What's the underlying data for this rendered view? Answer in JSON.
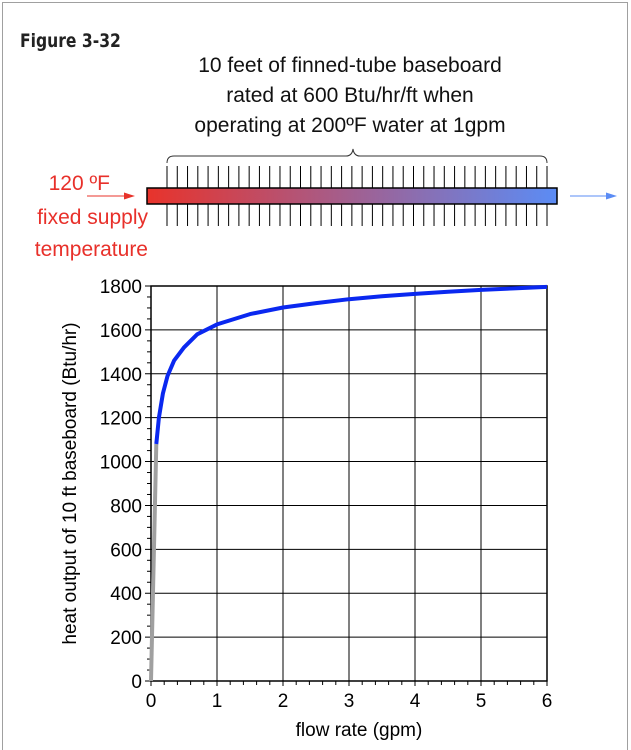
{
  "figure_label": "Figure 3-32",
  "diagram": {
    "caption_lines": [
      "10 feet of finned-tube baseboard",
      "rated at 600 Btu/hr/ft when",
      "operating at  200ºF water at 1gpm"
    ],
    "supply_temp": "120 ºF",
    "supply_label_lines": [
      "fixed supply",
      "temperature"
    ],
    "colors": {
      "inlet": "#e8332b",
      "outlet": "#5b8cf5",
      "fins": "#000000"
    }
  },
  "chart_data": {
    "type": "line",
    "title": "",
    "xlabel": "flow rate (gpm)",
    "ylabel": "heat output of 10 ft baseboard  (Btu/hr)",
    "xlim": [
      0,
      6
    ],
    "ylim": [
      0,
      1800
    ],
    "x_ticks": [
      "0",
      "1",
      "2",
      "3",
      "4",
      "5",
      "6"
    ],
    "y_ticks": [
      "0",
      "200",
      "400",
      "600",
      "800",
      "1000",
      "1200",
      "1400",
      "1600",
      "1800"
    ],
    "grid": true,
    "series": [
      {
        "color": "#a0a0a0",
        "points": [
          [
            0,
            0
          ],
          [
            0.08,
            1080
          ]
        ]
      },
      {
        "color": "#0a28f0",
        "points": [
          [
            0.08,
            1080
          ],
          [
            0.12,
            1200
          ],
          [
            0.18,
            1310
          ],
          [
            0.25,
            1390
          ],
          [
            0.35,
            1460
          ],
          [
            0.5,
            1520
          ],
          [
            0.7,
            1580
          ],
          [
            1.0,
            1625
          ],
          [
            1.5,
            1672
          ],
          [
            2.0,
            1702
          ],
          [
            2.5,
            1722
          ],
          [
            3.0,
            1740
          ],
          [
            3.5,
            1753
          ],
          [
            4.0,
            1764
          ],
          [
            4.5,
            1774
          ],
          [
            5.0,
            1782
          ],
          [
            5.5,
            1789
          ],
          [
            6.0,
            1796
          ]
        ]
      }
    ]
  }
}
